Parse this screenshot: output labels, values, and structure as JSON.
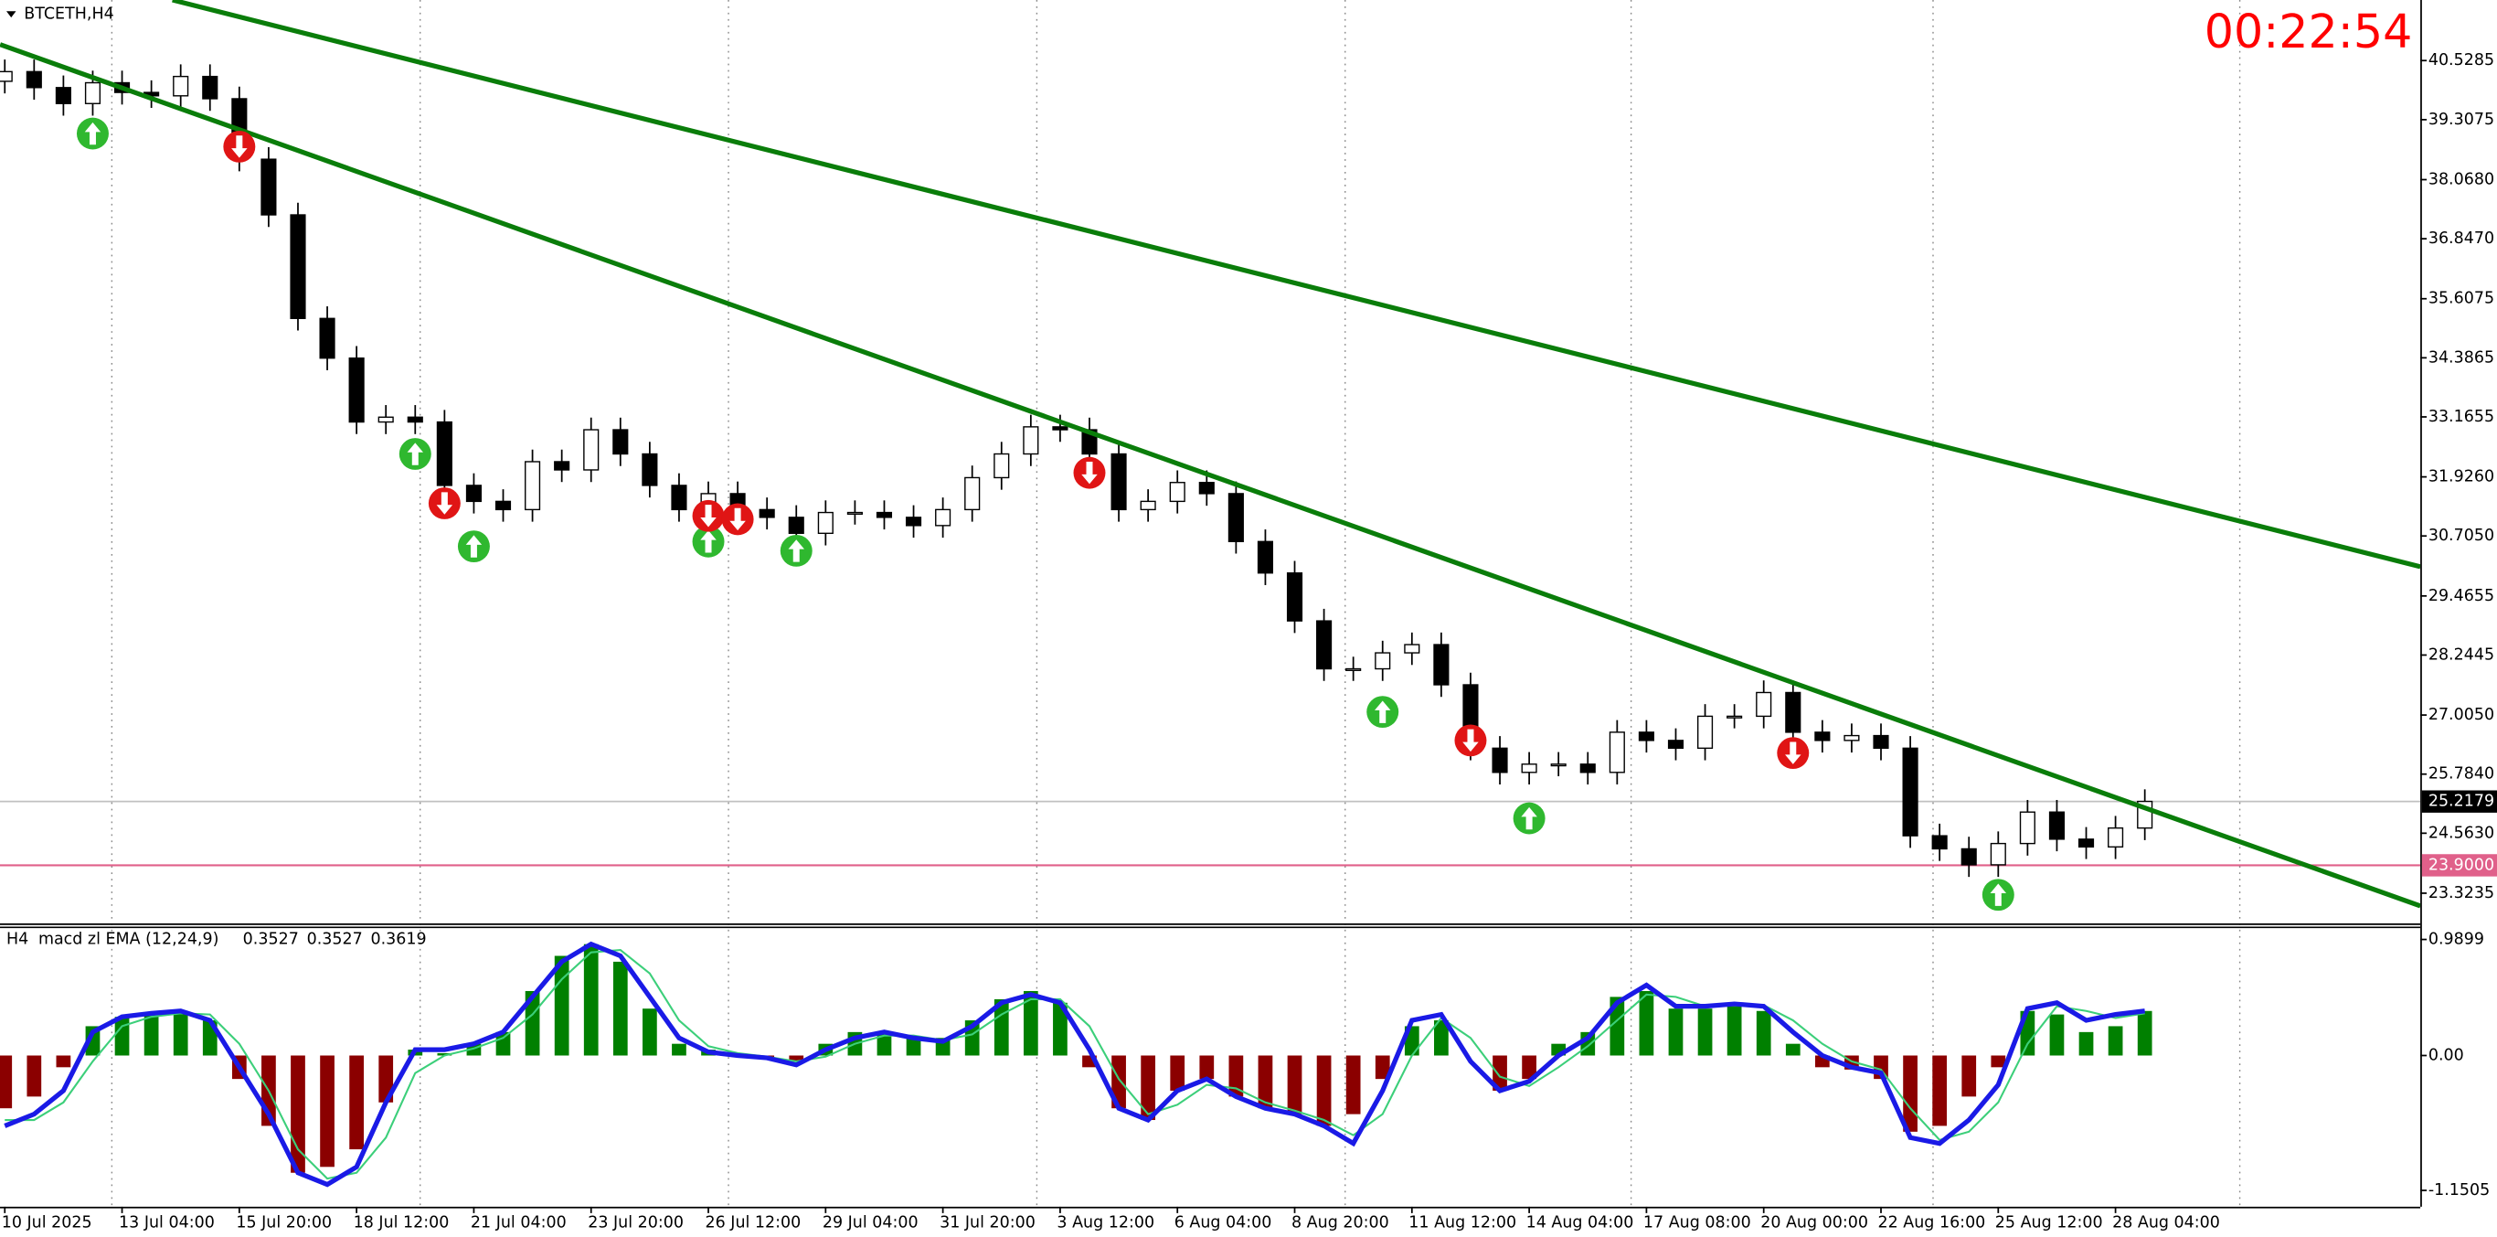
{
  "chart_data": [
    {
      "type": "candlestick",
      "title": "BTCETH,H4",
      "timer": "00:22:54",
      "categories": [
        "10 Jul 2025",
        null,
        null,
        null,
        "13 Jul 04:00",
        null,
        null,
        null,
        "15 Jul 20:00",
        null,
        null,
        null,
        "18 Jul 12:00",
        null,
        null,
        null,
        "21 Jul 04:00",
        null,
        null,
        null,
        "23 Jul 20:00",
        null,
        null,
        null,
        "26 Jul 12:00",
        null,
        null,
        null,
        "29 Jul 04:00",
        null,
        null,
        null,
        "31 Jul 20:00",
        null,
        null,
        null,
        "3 Aug 12:00",
        null,
        null,
        null,
        "6 Aug 04:00",
        null,
        null,
        null,
        "8 Aug 20:00",
        null,
        null,
        null,
        "11 Aug 12:00",
        null,
        null,
        null,
        "14 Aug 04:00",
        null,
        null,
        null,
        "17 Aug 08:00",
        null,
        null,
        null,
        "20 Aug 00:00",
        null,
        null,
        null,
        "22 Aug 16:00",
        null,
        null,
        null,
        "25 Aug 12:00",
        null,
        null,
        null,
        "28 Aug 04:00",
        null
      ],
      "open": [
        40.1,
        40.3,
        39.97,
        39.64,
        40.07,
        39.87,
        39.8,
        40.2,
        39.74,
        38.49,
        37.34,
        35.2,
        34.38,
        33.06,
        33.16,
        33.06,
        31.75,
        31.42,
        31.25,
        32.24,
        32.07,
        32.9,
        32.4,
        31.75,
        31.25,
        31.58,
        31.25,
        31.09,
        30.76,
        31.19,
        31.19,
        31.09,
        30.92,
        31.25,
        31.91,
        32.4,
        32.96,
        32.9,
        32.4,
        31.25,
        31.42,
        31.81,
        31.58,
        30.59,
        29.94,
        28.95,
        27.96,
        27.96,
        28.29,
        28.46,
        27.63,
        26.32,
        25.82,
        25.99,
        25.99,
        25.82,
        26.65,
        26.48,
        26.32,
        26.98,
        26.98,
        27.47,
        26.65,
        26.48,
        26.58,
        26.32,
        24.51,
        24.24,
        23.91,
        24.35,
        25.0,
        24.44,
        24.28,
        24.67
      ],
      "high": [
        40.55,
        40.55,
        40.22,
        40.32,
        40.32,
        40.12,
        40.45,
        40.45,
        39.99,
        38.74,
        37.59,
        35.45,
        34.63,
        33.41,
        33.41,
        33.31,
        32.0,
        31.67,
        32.49,
        32.49,
        33.15,
        33.15,
        32.65,
        32.0,
        31.83,
        31.83,
        31.5,
        31.34,
        31.44,
        31.44,
        31.44,
        31.34,
        31.5,
        32.16,
        32.65,
        33.21,
        33.21,
        33.15,
        32.65,
        31.67,
        32.06,
        32.06,
        31.83,
        30.84,
        30.19,
        29.2,
        28.21,
        28.54,
        28.71,
        28.71,
        27.88,
        26.57,
        26.24,
        26.24,
        26.24,
        26.9,
        26.9,
        26.73,
        27.23,
        27.23,
        27.72,
        27.72,
        26.9,
        26.83,
        26.83,
        26.57,
        24.76,
        24.49,
        24.6,
        25.25,
        25.25,
        24.69,
        24.92,
        25.47
      ],
      "low": [
        39.85,
        39.72,
        39.39,
        39.39,
        39.62,
        39.55,
        39.55,
        39.49,
        38.24,
        37.09,
        34.95,
        34.13,
        32.81,
        32.81,
        32.81,
        31.5,
        31.17,
        31.0,
        31.0,
        31.82,
        31.82,
        32.15,
        31.5,
        31.0,
        31.0,
        31.0,
        30.84,
        30.51,
        30.51,
        30.94,
        30.84,
        30.67,
        30.67,
        31.0,
        31.66,
        32.15,
        32.65,
        32.15,
        31.0,
        31.0,
        31.17,
        31.33,
        30.34,
        29.69,
        28.7,
        27.71,
        27.71,
        27.71,
        28.04,
        27.38,
        26.07,
        25.57,
        25.57,
        25.74,
        25.57,
        25.57,
        26.23,
        26.07,
        26.07,
        26.73,
        26.73,
        26.4,
        26.23,
        26.23,
        26.07,
        24.26,
        23.99,
        23.66,
        23.66,
        24.1,
        24.19,
        24.03,
        24.03,
        24.42
      ],
      "close": [
        40.3,
        39.97,
        39.64,
        40.07,
        39.87,
        39.8,
        40.2,
        39.74,
        38.49,
        37.34,
        35.2,
        34.38,
        33.06,
        33.16,
        33.06,
        31.75,
        31.42,
        31.25,
        32.24,
        32.07,
        32.9,
        32.4,
        31.75,
        31.25,
        31.58,
        31.25,
        31.09,
        30.76,
        31.19,
        31.19,
        31.09,
        30.92,
        31.25,
        31.91,
        32.4,
        32.96,
        32.9,
        32.4,
        31.25,
        31.42,
        31.81,
        31.58,
        30.59,
        29.94,
        28.95,
        27.96,
        27.96,
        28.29,
        28.46,
        27.63,
        26.32,
        25.82,
        25.99,
        25.99,
        25.82,
        26.65,
        26.48,
        26.32,
        26.98,
        26.98,
        27.47,
        26.65,
        26.48,
        26.58,
        26.32,
        24.51,
        24.24,
        23.91,
        24.35,
        25.0,
        24.44,
        24.28,
        24.67,
        25.22
      ],
      "ylim": [
        22.7,
        41.78
      ],
      "yticks": [
        40.5285,
        39.3075,
        {
          "value": 38.068,
          "label": "38.0680"
        },
        {
          "value": 36.847,
          "label": "36.8470"
        },
        35.6075,
        34.3865,
        33.1655,
        {
          "value": 31.926,
          "label": "31.9260"
        },
        {
          "value": 30.705,
          "label": "30.7050"
        },
        29.4655,
        28.2445,
        {
          "value": 27.005,
          "label": "27.0050"
        },
        {
          "value": 25.784,
          "label": "25.7840"
        },
        {
          "value": 24.563,
          "label": "24.5630"
        },
        23.3235
      ],
      "current_price": 25.2179,
      "level_line": {
        "value": 23.9,
        "label": "23.9000"
      },
      "trendlines": [
        {
          "x": [
            -0.16,
            82.4
          ],
          "y": [
            40.86,
            23.06
          ]
        },
        {
          "x": [
            5.72,
            82.4
          ],
          "y": [
            41.78,
            30.07
          ]
        }
      ],
      "buy_signals": {
        "x": [
          3,
          14,
          16,
          24,
          27,
          47,
          52,
          68
        ],
        "y": [
          39.02,
          32.4,
          30.49,
          30.59,
          30.4,
          27.07,
          24.87,
          23.29
        ]
      },
      "sell_signals": {
        "x": [
          8,
          15,
          24,
          25,
          37,
          50,
          61
        ],
        "y": [
          38.75,
          31.38,
          31.12,
          31.05,
          32.01,
          26.48,
          26.22
        ]
      },
      "up_color": "#ffffff",
      "down_color": "#000000",
      "trend_color": "#0a7d0a",
      "level_color": "#e0608a",
      "buy_color": "#2fb82f",
      "sell_color": "#e01515",
      "timer_color": "#ff0000"
    },
    {
      "type": "macd",
      "title": "H4",
      "indicator": "macd zl EMA (12,24,9)",
      "indicator_values": [
        0.3527,
        0.3527,
        0.3619
      ],
      "histogram": [
        -0.45,
        -0.35,
        -0.1,
        0.25,
        0.33,
        0.35,
        0.38,
        0.3,
        -0.2,
        -0.6,
        -1.0,
        -0.95,
        -0.8,
        -0.4,
        0.05,
        0.02,
        0.1,
        0.2,
        0.55,
        0.85,
        0.95,
        0.8,
        0.4,
        0.1,
        0.05,
        0.0,
        -0.03,
        -0.05,
        0.1,
        0.2,
        0.2,
        0.15,
        0.15,
        0.3,
        0.48,
        0.55,
        0.45,
        -0.1,
        -0.45,
        -0.55,
        -0.3,
        -0.2,
        -0.35,
        -0.45,
        -0.5,
        -0.6,
        -0.5,
        -0.2,
        0.25,
        0.3,
        0.0,
        -0.3,
        -0.2,
        0.1,
        0.2,
        0.5,
        0.55,
        0.4,
        0.4,
        0.42,
        0.38,
        0.1,
        -0.1,
        -0.12,
        -0.2,
        -0.65,
        -0.6,
        -0.35,
        -0.1,
        0.38,
        0.35,
        0.2,
        0.25,
        0.38
      ],
      "macd": [
        -0.6,
        -0.5,
        -0.3,
        0.2,
        0.33,
        0.36,
        0.38,
        0.3,
        -0.1,
        -0.5,
        -1.0,
        -1.1,
        -0.95,
        -0.4,
        0.05,
        0.05,
        0.1,
        0.2,
        0.5,
        0.8,
        0.95,
        0.85,
        0.5,
        0.15,
        0.03,
        0.0,
        -0.02,
        -0.08,
        0.05,
        0.15,
        0.2,
        0.15,
        0.12,
        0.25,
        0.45,
        0.52,
        0.45,
        0.05,
        -0.45,
        -0.55,
        -0.3,
        -0.2,
        -0.35,
        -0.45,
        -0.5,
        -0.6,
        -0.75,
        -0.3,
        0.3,
        0.35,
        -0.05,
        -0.3,
        -0.22,
        0.0,
        0.15,
        0.45,
        0.6,
        0.42,
        0.42,
        0.44,
        0.42,
        0.2,
        0.0,
        -0.1,
        -0.15,
        -0.7,
        -0.75,
        -0.55,
        -0.25,
        0.4,
        0.45,
        0.3,
        0.35,
        0.38
      ],
      "signal": [
        -0.55,
        -0.55,
        -0.4,
        -0.05,
        0.25,
        0.33,
        0.36,
        0.35,
        0.1,
        -0.3,
        -0.8,
        -1.05,
        -1.0,
        -0.7,
        -0.15,
        0.0,
        0.06,
        0.15,
        0.35,
        0.65,
        0.88,
        0.9,
        0.7,
        0.3,
        0.08,
        0.02,
        -0.01,
        -0.05,
        -0.01,
        0.1,
        0.17,
        0.17,
        0.13,
        0.18,
        0.35,
        0.48,
        0.48,
        0.25,
        -0.2,
        -0.5,
        -0.42,
        -0.25,
        -0.28,
        -0.4,
        -0.47,
        -0.55,
        -0.68,
        -0.5,
        0.0,
        0.32,
        0.15,
        -0.18,
        -0.26,
        -0.1,
        0.08,
        0.3,
        0.52,
        0.5,
        0.42,
        0.43,
        0.43,
        0.3,
        0.1,
        -0.05,
        -0.12,
        -0.45,
        -0.72,
        -0.65,
        -0.4,
        0.1,
        0.42,
        0.38,
        0.32,
        0.36
      ],
      "ylim": [
        -1.29,
        1.1
      ],
      "yticks": [
        0.9899,
        {
          "value": 0,
          "label": "0.00"
        },
        -1.1505
      ],
      "macd_color": "#1a1ae6",
      "signal_color": "#3ccf7a",
      "hist_up_color": "#008000",
      "hist_down_color": "#8b0000"
    }
  ]
}
